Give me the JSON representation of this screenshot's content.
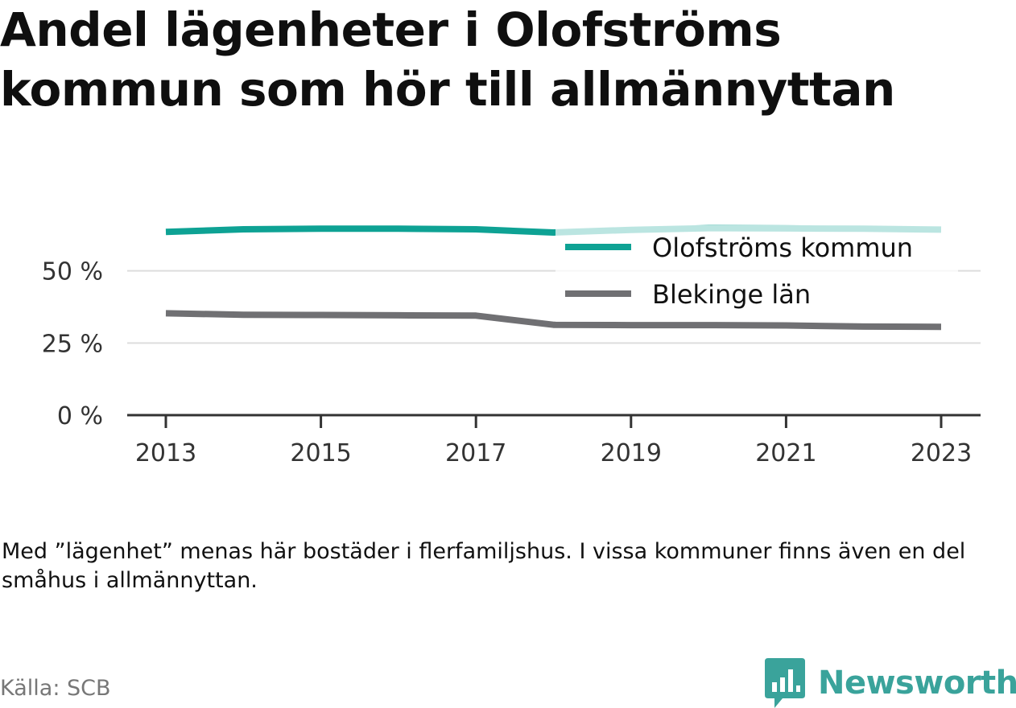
{
  "title": "Andel lägenheter i Olofströms kommun som hör till allmännyttan",
  "note": "Med ”lägenhet” menas här bostäder i flerfamiljshus. I vissa kommuner finns även en del småhus i allmännyttan.",
  "source": "Källa: SCB",
  "brand": {
    "name": "Newsworthy",
    "icon": "bar-chart-speech-bubble-icon",
    "color": "#3aa39b"
  },
  "chart_data": {
    "type": "line",
    "x": [
      2013,
      2014,
      2015,
      2016,
      2017,
      2018,
      2019,
      2020,
      2021,
      2022,
      2023
    ],
    "series": [
      {
        "name": "Olofströms kommun",
        "color": "#0ea294",
        "values": [
          63.5,
          64.4,
          64.6,
          64.6,
          64.4,
          63.3,
          64.2,
          64.8,
          64.7,
          64.6,
          64.3
        ]
      },
      {
        "name": "Blekinge län",
        "color": "#707073",
        "values": [
          35.3,
          34.8,
          34.7,
          34.6,
          34.5,
          31.3,
          31.2,
          31.2,
          31.1,
          30.7,
          30.6
        ]
      }
    ],
    "xticks": [
      "2013",
      "2015",
      "2017",
      "2019",
      "2021",
      "2023"
    ],
    "yticks": [
      "0 %",
      "25 %",
      "50 %"
    ],
    "ytick_values": [
      0,
      25,
      50
    ],
    "xlim": [
      2012.5,
      2023.5
    ],
    "ylim": [
      0,
      75
    ],
    "grid": "horizontal",
    "legend_position": "top-right",
    "colors": {
      "grid": "#dddddd",
      "axis": "#333333"
    }
  }
}
